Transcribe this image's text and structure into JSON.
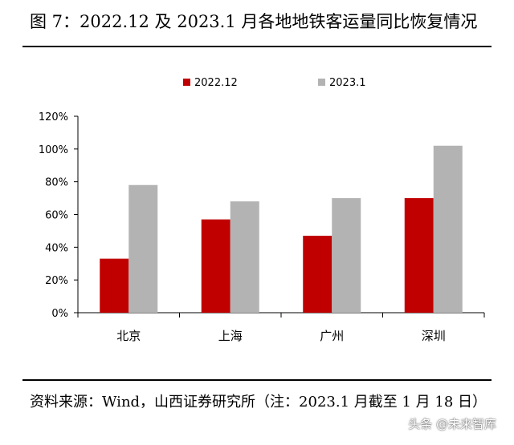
{
  "title": "图 7：2022.12 及 2023.1 月各地地铁客运量同比恢复情况",
  "source": "资料来源：Wind，山西证券研究所（注：2023.1 月截至 1 月 18 日）",
  "watermark": "头条 @未来智库",
  "chart_data": {
    "type": "bar",
    "categories": [
      "北京",
      "上海",
      "广州",
      "深圳"
    ],
    "series": [
      {
        "name": "2022.12",
        "values": [
          33,
          57,
          47,
          70
        ],
        "color": "#c00000"
      },
      {
        "name": "2023.1",
        "values": [
          78,
          68,
          70,
          102
        ],
        "color": "#b3b3b3"
      }
    ],
    "y_ticks": [
      "0%",
      "20%",
      "40%",
      "60%",
      "80%",
      "100%",
      "120%"
    ],
    "ylim": [
      0,
      120
    ],
    "unit": "%",
    "grid": false,
    "legend_position": "top-center"
  }
}
